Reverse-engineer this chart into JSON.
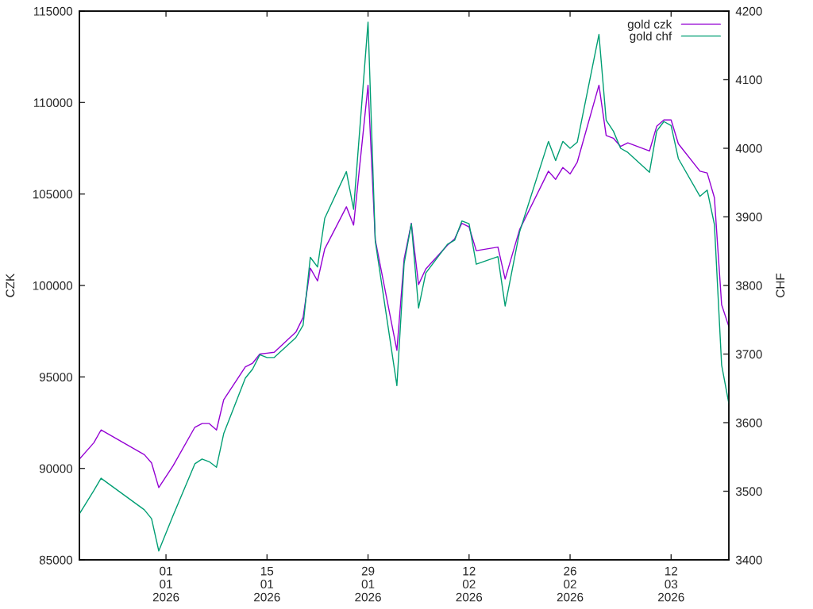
{
  "chart_data": {
    "type": "line",
    "ylabel": "CZK",
    "y2label": "CHF",
    "x": [
      "2025-12-20",
      "2025-12-22",
      "2025-12-23",
      "2025-12-29",
      "2025-12-30",
      "2025-12-31",
      "2026-01-02",
      "2026-01-05",
      "2026-01-06",
      "2026-01-07",
      "2026-01-08",
      "2026-01-09",
      "2026-01-12",
      "2026-01-13",
      "2026-01-14",
      "2026-01-15",
      "2026-01-16",
      "2026-01-19",
      "2026-01-20",
      "2026-01-21",
      "2026-01-22",
      "2026-01-23",
      "2026-01-26",
      "2026-01-27",
      "2026-01-29",
      "2026-01-30",
      "2026-02-02",
      "2026-02-03",
      "2026-02-04",
      "2026-02-05",
      "2026-02-06",
      "2026-02-09",
      "2026-02-10",
      "2026-02-11",
      "2026-02-12",
      "2026-02-13",
      "2026-02-16",
      "2026-02-17",
      "2026-02-19",
      "2026-02-23",
      "2026-02-24",
      "2026-02-25",
      "2026-02-26",
      "2026-02-27",
      "2026-03-02",
      "2026-03-03",
      "2026-03-04",
      "2026-03-05",
      "2026-03-06",
      "2026-03-09",
      "2026-03-10",
      "2026-03-11",
      "2026-03-12",
      "2026-03-13",
      "2026-03-16",
      "2026-03-17",
      "2026-03-18",
      "2026-03-19",
      "2026-03-20"
    ],
    "series": [
      {
        "name": "gold czk",
        "color": "#9400d3",
        "axis": "y",
        "values": [
          90500,
          91400,
          92100,
          90750,
          90300,
          88950,
          90150,
          92250,
          92450,
          92450,
          92100,
          93750,
          95550,
          95750,
          96250,
          96300,
          96350,
          97450,
          98250,
          100950,
          100250,
          102000,
          104300,
          103300,
          110950,
          102500,
          96450,
          101450,
          103400,
          100050,
          100900,
          102200,
          102550,
          103400,
          103200,
          101900,
          102100,
          100350,
          103050,
          106250,
          105800,
          106450,
          106100,
          106750,
          110950,
          108200,
          108050,
          107600,
          107800,
          107350,
          108700,
          109050,
          109050,
          107750,
          106250,
          106150,
          104800,
          98950,
          97750
        ]
      },
      {
        "name": "gold chf",
        "color": "#009e73",
        "axis": "y2",
        "values": [
          3467,
          3501,
          3519,
          3473,
          3460,
          3413,
          3465,
          3540,
          3547,
          3543,
          3535,
          3584,
          3665,
          3678,
          3699,
          3695,
          3695,
          3724,
          3742,
          3841,
          3827,
          3898,
          3966,
          3911,
          4184,
          3865,
          3654,
          3832,
          3890,
          3767,
          3818,
          3860,
          3866,
          3894,
          3890,
          3831,
          3842,
          3770,
          3878,
          4010,
          3982,
          4010,
          4000,
          4009,
          4166,
          4041,
          4025,
          4000,
          3994,
          3965,
          4025,
          4039,
          4033,
          3985,
          3930,
          3939,
          3889,
          3684,
          3628
        ]
      }
    ],
    "xlim": [
      "2025-12-20",
      "2026-03-20"
    ],
    "xticks": [
      {
        "value": "2026-01-01",
        "label": "01\n01\n2026"
      },
      {
        "value": "2026-01-15",
        "label": "15\n01\n2026"
      },
      {
        "value": "2026-01-29",
        "label": "29\n01\n2026"
      },
      {
        "value": "2026-02-12",
        "label": "12\n02\n2026"
      },
      {
        "value": "2026-02-26",
        "label": "26\n02\n2026"
      },
      {
        "value": "2026-03-12",
        "label": "12\n03\n2026"
      }
    ],
    "ylim": [
      85000,
      115000
    ],
    "yticks": [
      85000,
      90000,
      95000,
      100000,
      105000,
      110000,
      115000
    ],
    "y2lim": [
      3400,
      4200
    ],
    "y2ticks": [
      3400,
      3500,
      3600,
      3700,
      3800,
      3900,
      4000,
      4100,
      4200
    ],
    "legend": "top right",
    "grid": false,
    "line_style": "solid"
  }
}
